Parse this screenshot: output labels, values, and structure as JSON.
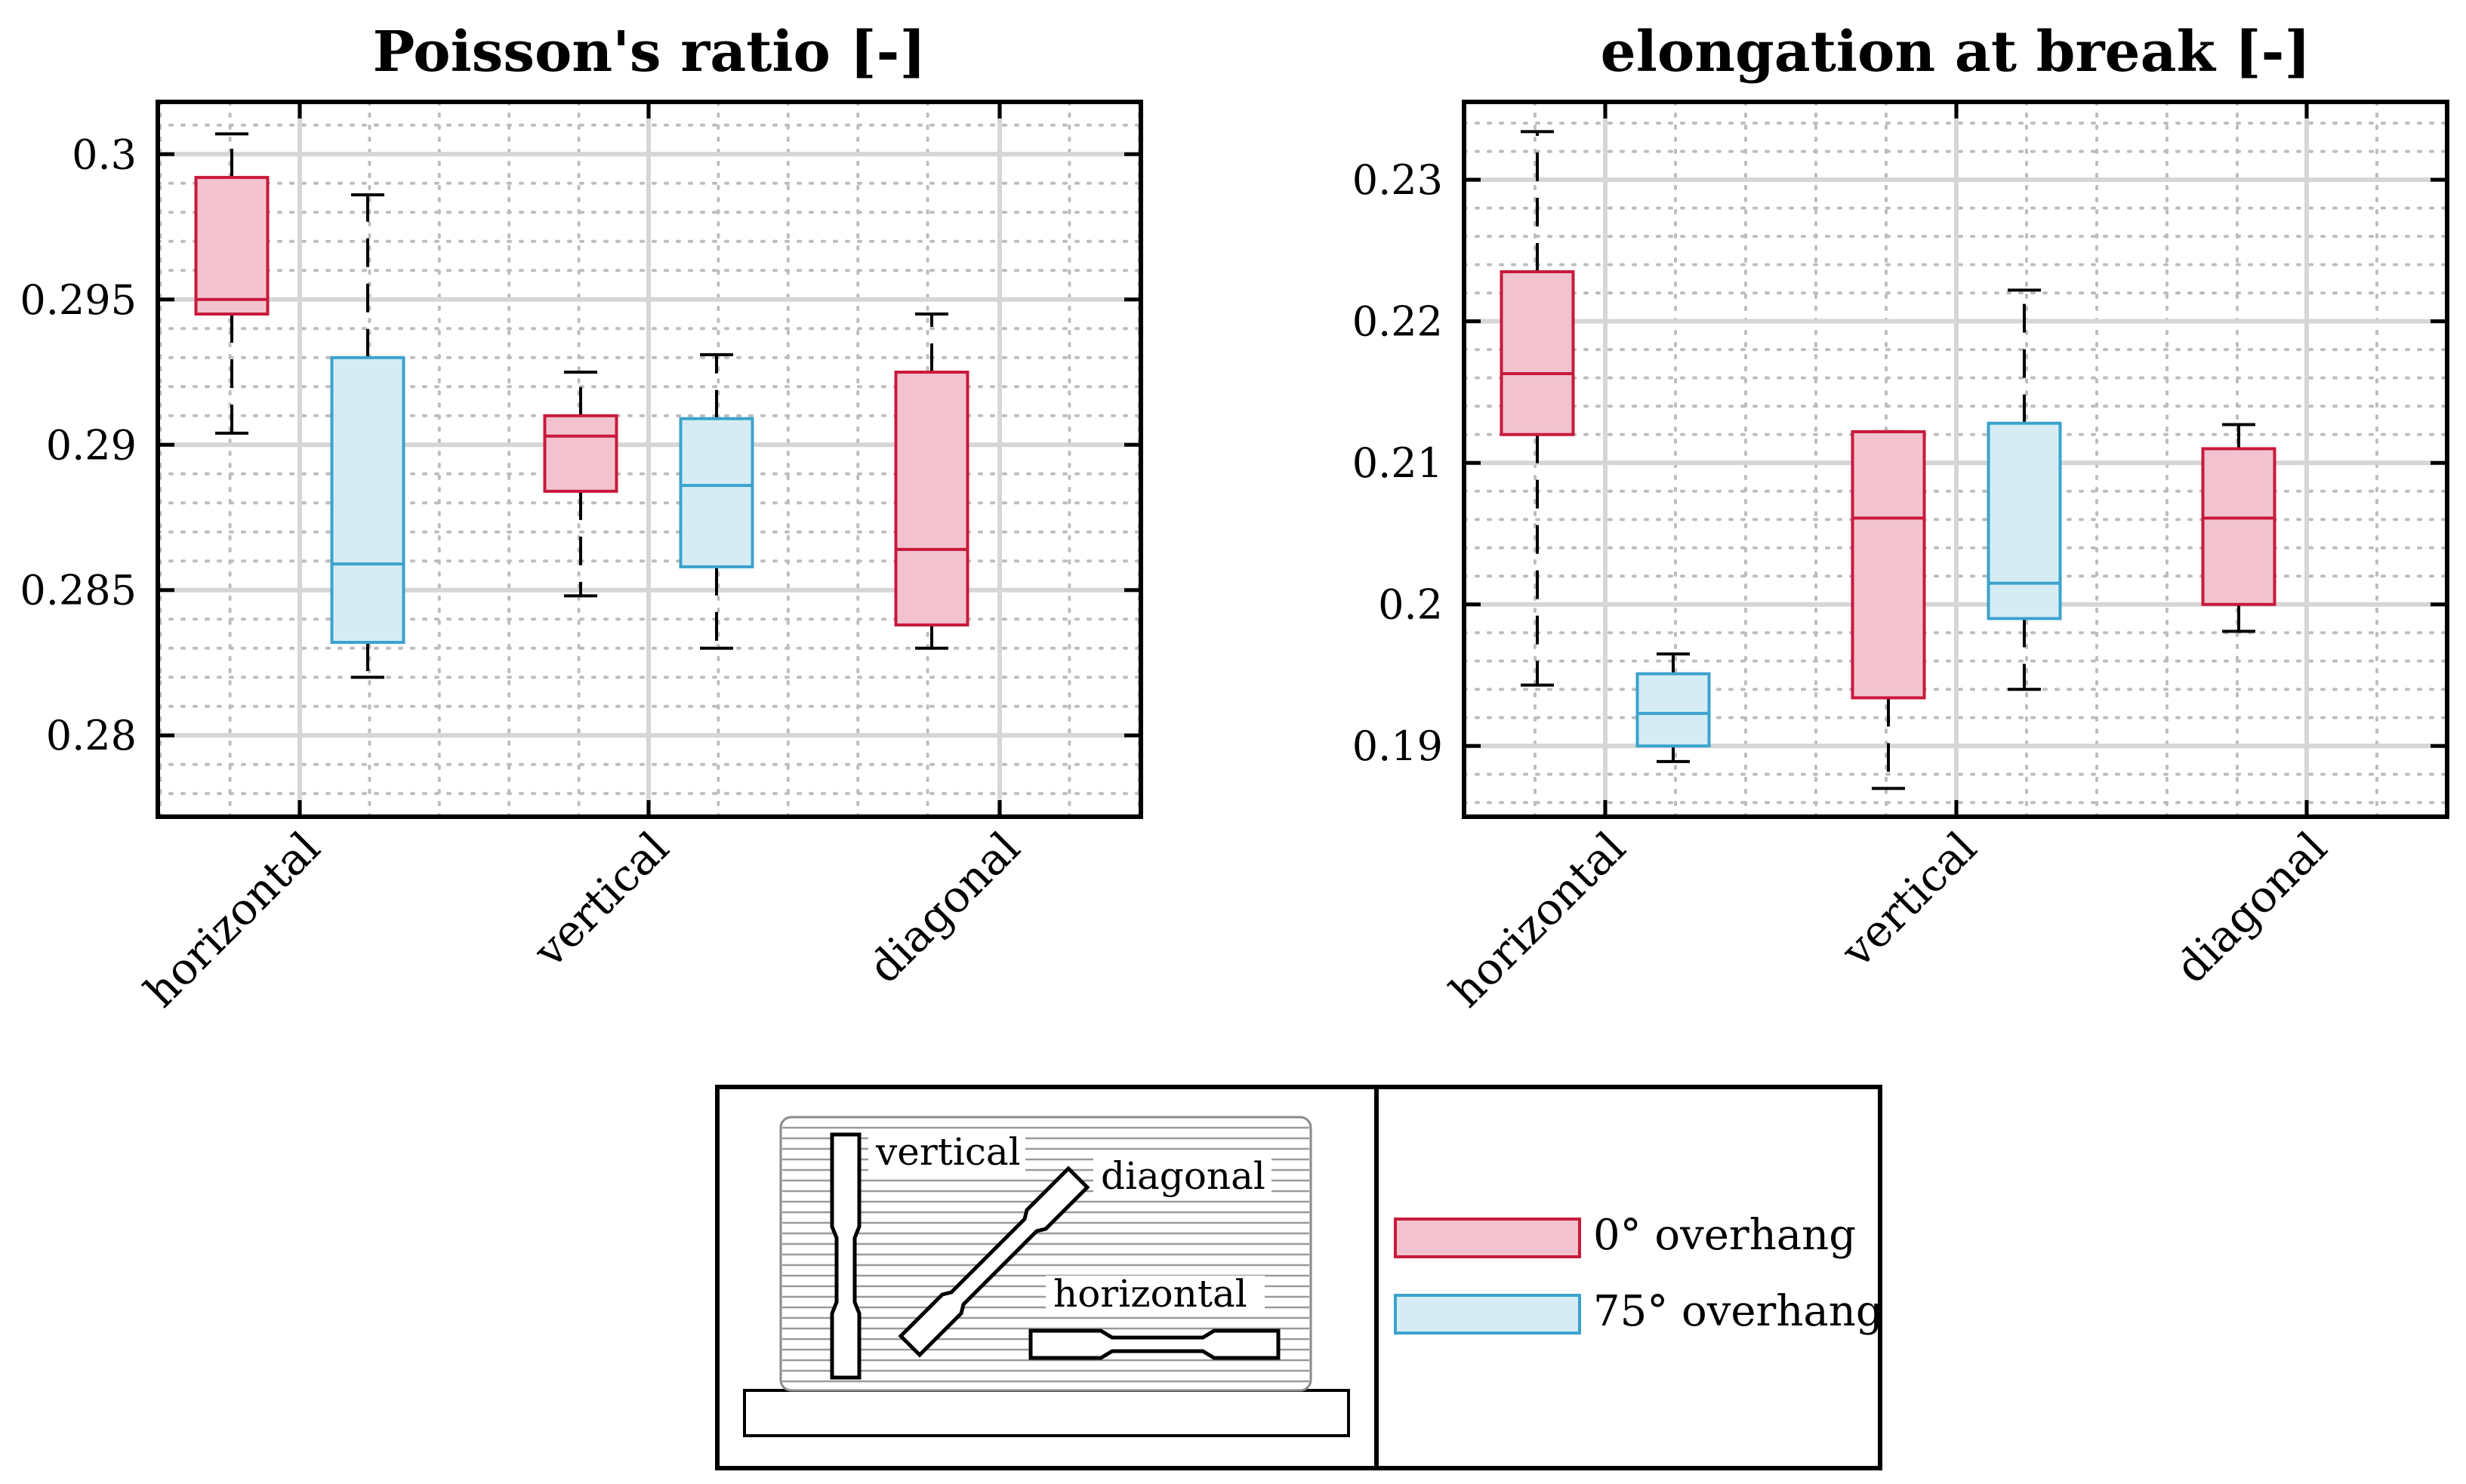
{
  "chart_data": [
    {
      "type": "box",
      "title": "Poisson's ratio [-]",
      "categories": [
        "horizontal",
        "vertical",
        "diagonal"
      ],
      "ylim": [
        0.2772,
        0.3018
      ],
      "yticks": [
        0.28,
        0.285,
        0.29,
        0.295,
        0.3
      ],
      "ytick_labels": [
        "0.28",
        "0.285",
        "0.29",
        "0.295",
        "0.3"
      ],
      "series": [
        {
          "name": "0° overhang",
          "boxes": [
            {
              "min": 0.2904,
              "q1": 0.2945,
              "median": 0.295,
              "q3": 0.2992,
              "max": 0.3007
            },
            {
              "min": 0.2848,
              "q1": 0.2884,
              "median": 0.2903,
              "q3": 0.291,
              "max": 0.2925
            },
            {
              "min": 0.283,
              "q1": 0.2838,
              "median": 0.2864,
              "q3": 0.2925,
              "max": 0.2945
            }
          ]
        },
        {
          "name": "75° overhang",
          "boxes": [
            {
              "min": 0.282,
              "q1": 0.2832,
              "median": 0.2859,
              "q3": 0.293,
              "max": 0.2986
            },
            {
              "min": 0.283,
              "q1": 0.2858,
              "median": 0.2886,
              "q3": 0.2909,
              "max": 0.2931
            }
          ]
        }
      ]
    },
    {
      "type": "box",
      "title": "elongation at break [-]",
      "categories": [
        "horizontal",
        "vertical",
        "diagonal"
      ],
      "ylim": [
        0.185,
        0.2355
      ],
      "yticks": [
        0.19,
        0.2,
        0.21,
        0.22,
        0.23
      ],
      "ytick_labels": [
        "0.19",
        "0.2",
        "0.21",
        "0.22",
        "0.23"
      ],
      "series": [
        {
          "name": "0° overhang",
          "boxes": [
            {
              "min": 0.1943,
              "q1": 0.212,
              "median": 0.2163,
              "q3": 0.2235,
              "max": 0.2334
            },
            {
              "min": 0.187,
              "q1": 0.1934,
              "median": 0.2061,
              "q3": 0.2122,
              "max": 0.2122
            },
            {
              "min": 0.1981,
              "q1": 0.2,
              "median": 0.2061,
              "q3": 0.211,
              "max": 0.2127
            }
          ]
        },
        {
          "name": "75° overhang",
          "boxes": [
            {
              "min": 0.1889,
              "q1": 0.19,
              "median": 0.1923,
              "q3": 0.1951,
              "max": 0.1965
            },
            {
              "min": 0.194,
              "q1": 0.199,
              "median": 0.2015,
              "q3": 0.2128,
              "max": 0.2222
            }
          ]
        }
      ]
    }
  ],
  "legend": {
    "items": [
      {
        "label": "0° overhang",
        "color": "#c8193c",
        "fill": "#f2c3cf"
      },
      {
        "label": "75° overhang",
        "color": "#3ba3cc",
        "fill": "#d5ecf5"
      }
    ]
  },
  "inset": {
    "vertical": "vertical",
    "diagonal": "diagonal",
    "horizontal": "horizontal"
  }
}
